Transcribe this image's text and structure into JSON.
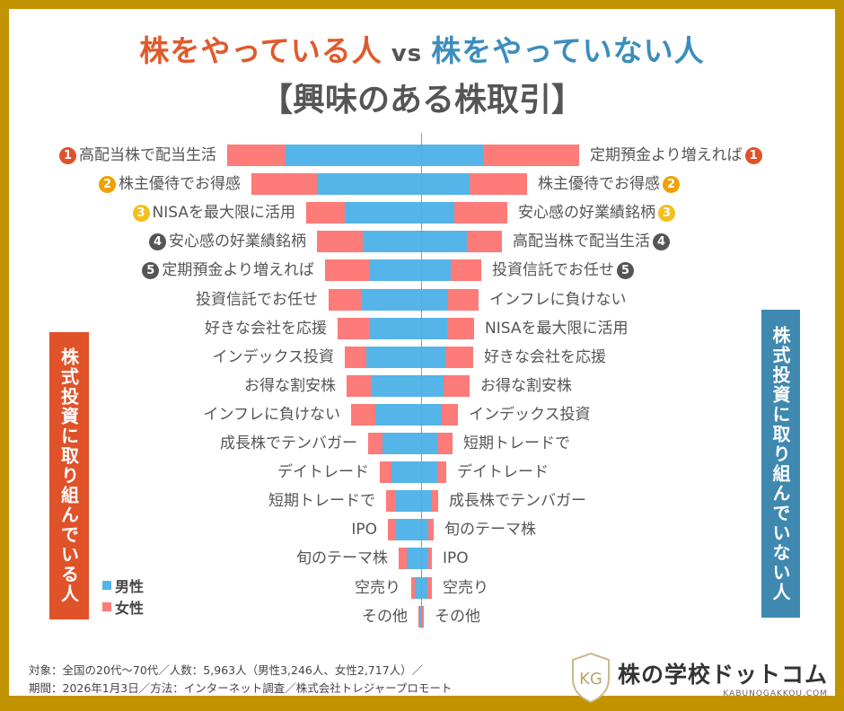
{
  "title": {
    "left": "株をやっている人",
    "vs": "vs",
    "right": "株をやっていない人",
    "subtitle": "【興味のある株取引】"
  },
  "side_labels": {
    "left": "株式投資に取り組んでいる人",
    "right": "株式投資に取り組んでいない人"
  },
  "legend": {
    "male": "男性",
    "female": "女性"
  },
  "colors": {
    "male": "#55b4e8",
    "female": "#fd7b78",
    "left_accent": "#e0522a",
    "right_accent": "#3f88b0",
    "frame": "#c29300",
    "rank1": "#e0522a",
    "rank2": "#f0a000",
    "rank3": "#f2c01e",
    "rank4": "#555555",
    "rank5": "#555555"
  },
  "chart_data": {
    "type": "bar",
    "subtype": "butterfly-stacked",
    "grid": false,
    "legend_position": "bottom-left",
    "left": {
      "group": "株をやっている人",
      "categories": [
        "高配当株で配当生活",
        "株主優待でお得感",
        "NISAを最大限に活用",
        "安心感の好業績銘柄",
        "定期預金より増えれば",
        "投資信託でお任せ",
        "好きな会社を応援",
        "インデックス投資",
        "お得な割安株",
        "インフレに負けない",
        "成長株でテンバガー",
        "デイトレード",
        "短期トレードで",
        "IPO",
        "旬のテーマ株",
        "空売り",
        "その他"
      ],
      "ranks": [
        1,
        2,
        3,
        4,
        5,
        null,
        null,
        null,
        null,
        null,
        null,
        null,
        null,
        null,
        null,
        null,
        null
      ],
      "series": [
        {
          "name": "男性",
          "values": [
            151,
            116,
            85,
            65,
            58,
            66,
            57,
            61,
            56,
            51,
            43,
            33,
            28,
            29,
            16,
            7,
            2
          ]
        },
        {
          "name": "女性",
          "values": [
            65,
            73,
            43,
            51,
            49,
            37,
            36,
            24,
            27,
            27,
            16,
            13,
            11,
            8,
            9,
            4,
            1
          ]
        }
      ]
    },
    "right": {
      "group": "株をやっていない人",
      "categories": [
        "定期預金より増えれば",
        "株主優待でお得感",
        "安心感の好業績銘柄",
        "高配当株で配当生活",
        "投資信託でお任せ",
        "インフレに負けない",
        "NISAを最大限に活用",
        "好きな会社を応援",
        "お得な割安株",
        "インデックス投資",
        "短期トレードで",
        "デイトレード",
        "成長株でテンバガー",
        "旬のテーマ株",
        "IPO",
        "空売り",
        "その他"
      ],
      "ranks": [
        1,
        2,
        3,
        4,
        5,
        null,
        null,
        null,
        null,
        null,
        null,
        null,
        null,
        null,
        null,
        null,
        null
      ],
      "series": [
        {
          "name": "男性",
          "values": [
            69,
            54,
            37,
            51,
            33,
            30,
            29,
            27,
            25,
            23,
            18,
            18,
            12,
            8,
            8,
            7,
            1
          ]
        },
        {
          "name": "女性",
          "values": [
            107,
            64,
            59,
            39,
            34,
            34,
            30,
            31,
            29,
            18,
            17,
            10,
            7,
            6,
            4,
            5,
            2
          ]
        }
      ]
    }
  },
  "footer": {
    "line1": "対象：全国の20代～70代／人数：5,963人（男性3,246人、女性2,717人）／",
    "line2": "期間：2026年1月3日／方法：インターネット調査／株式会社トレジャープロモート"
  },
  "logo": {
    "mark": "KG",
    "name": "株の学校ドットコム",
    "url": "KABUNOGAKKOU.COM"
  }
}
